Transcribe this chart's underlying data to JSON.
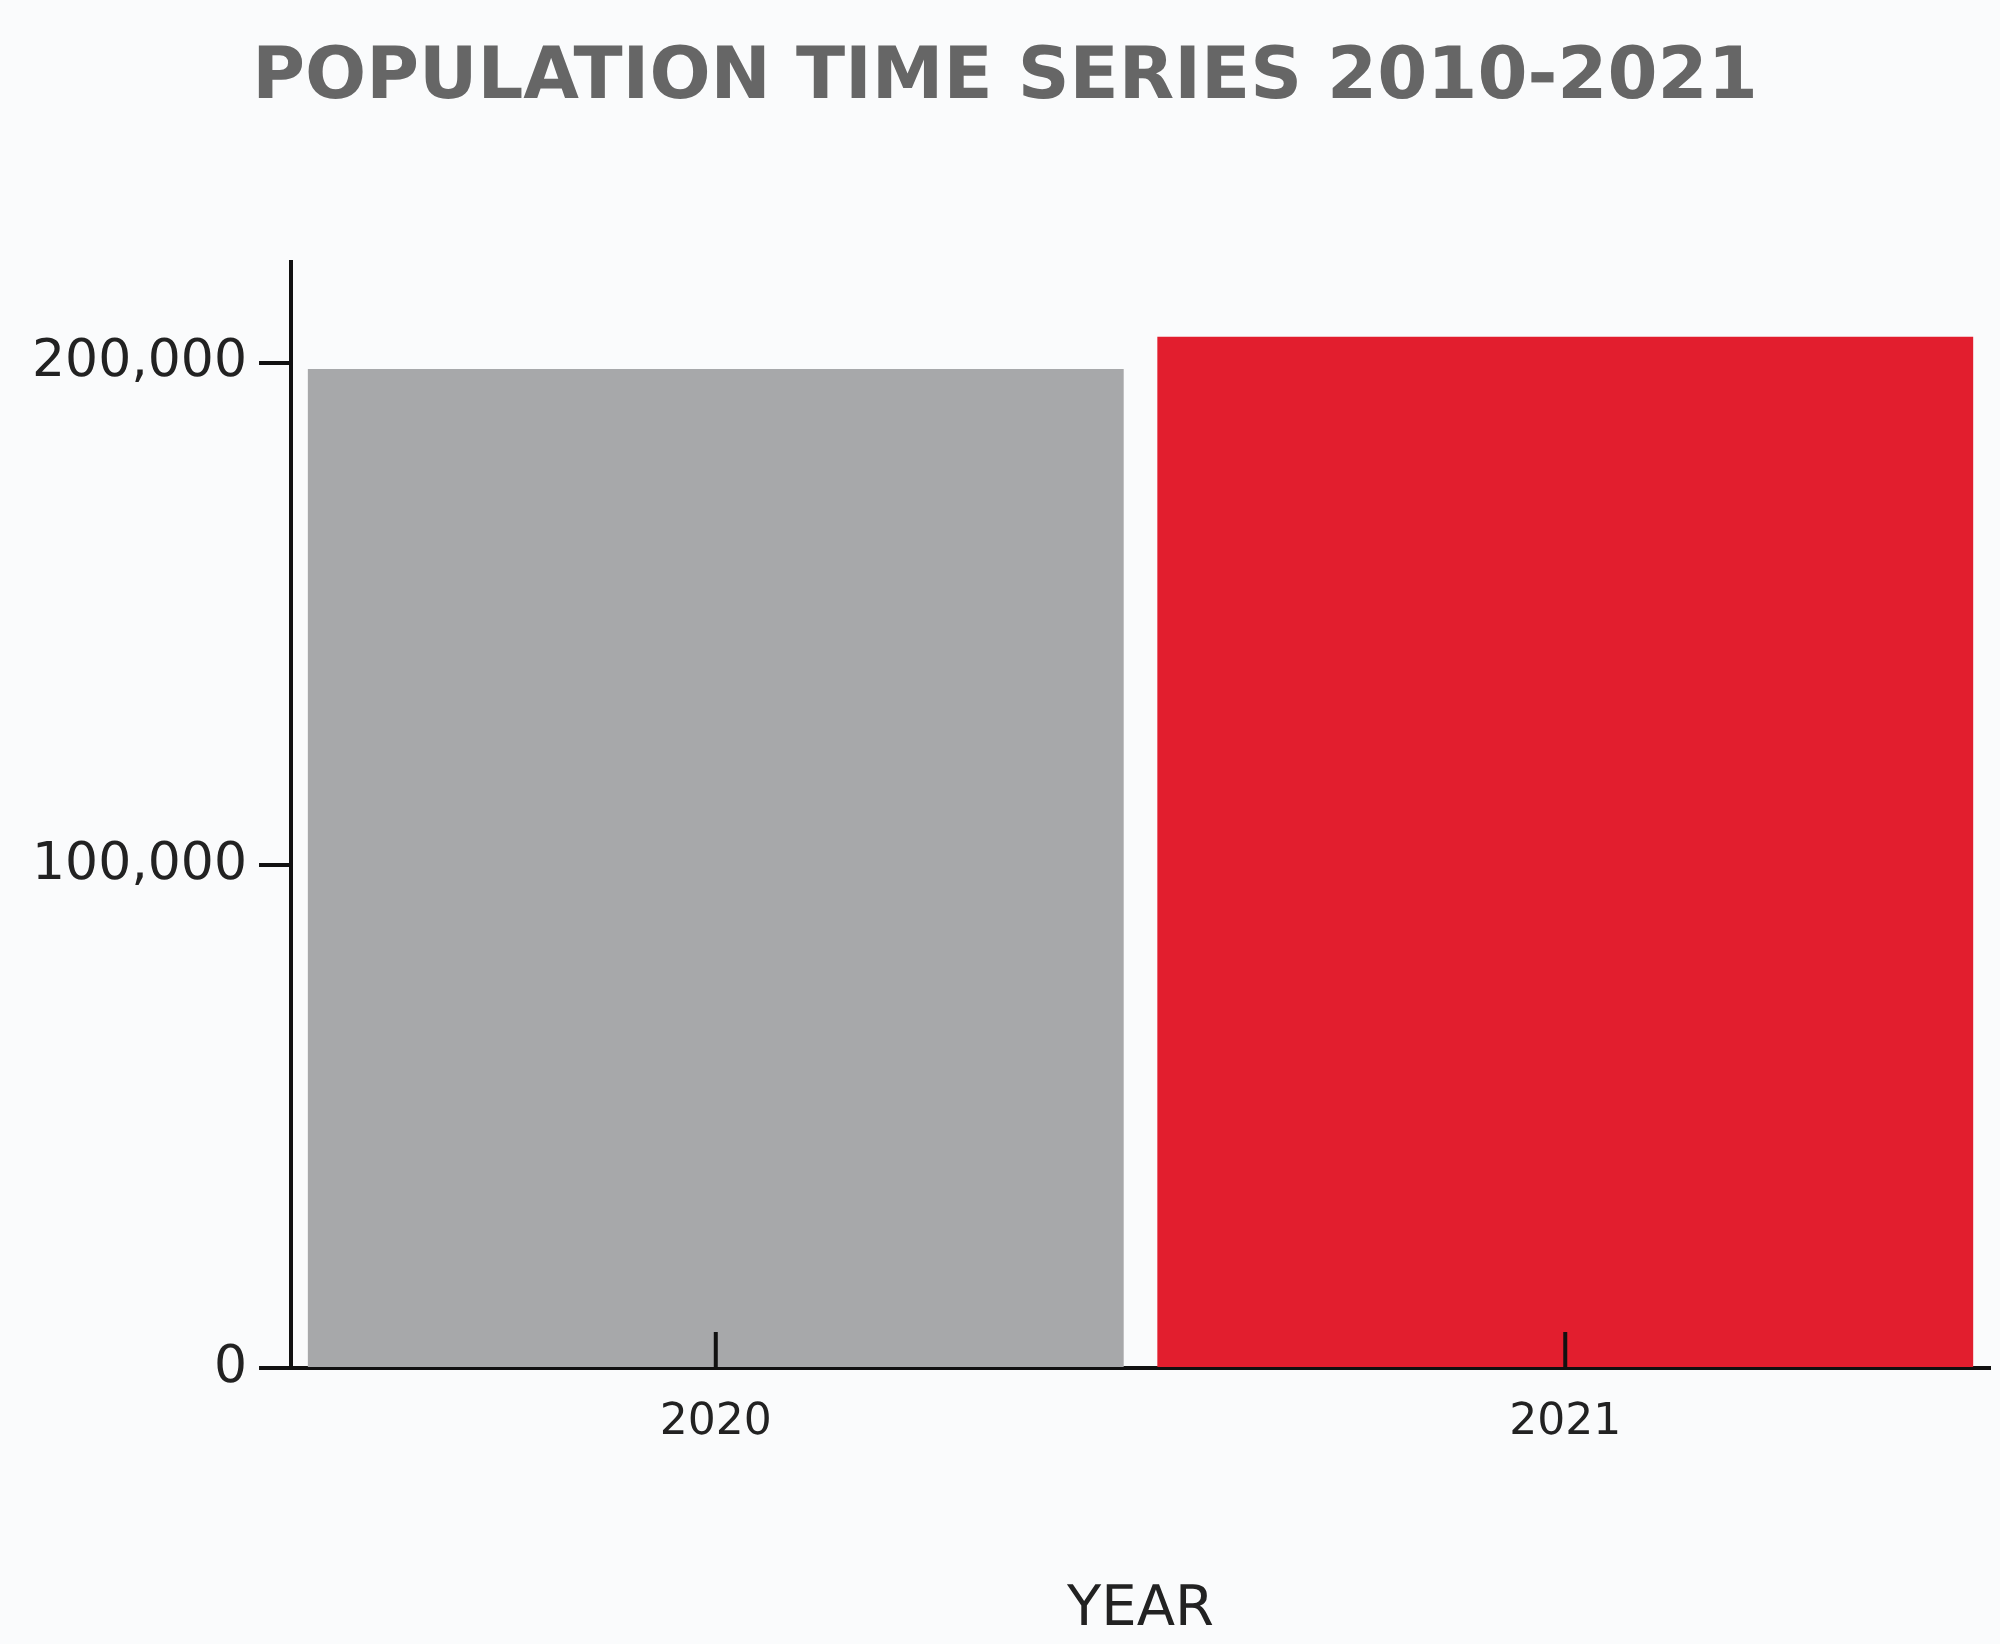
{
  "chart_data": {
    "type": "bar",
    "title": "POPULATION TIME SERIES 2010-2021",
    "xlabel": "YEAR",
    "categories": [
      "2020",
      "2021"
    ],
    "values": [
      198800,
      205200
    ],
    "colors": [
      "#a7a8aa",
      "#e21e2e"
    ],
    "ylim": [
      0,
      220000
    ],
    "yticks": [
      {
        "value": 0,
        "label": "0"
      },
      {
        "value": 100000,
        "label": "100,000"
      },
      {
        "value": 200000,
        "label": "200,000"
      }
    ],
    "grid": false,
    "legend": false
  }
}
